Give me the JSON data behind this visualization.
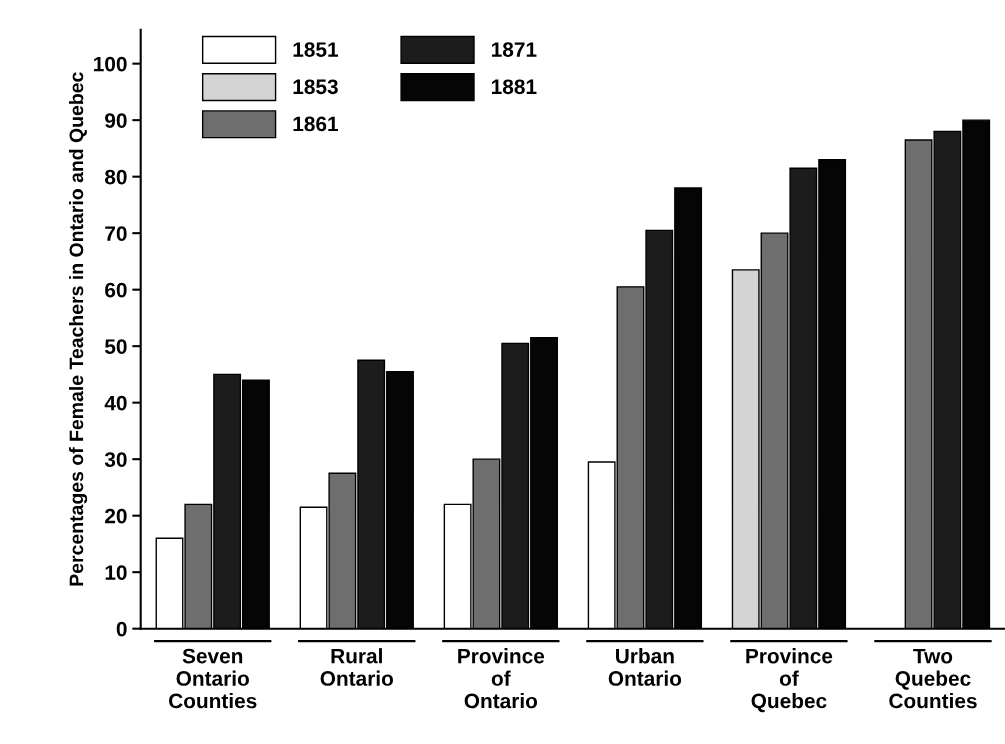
{
  "chart_data": {
    "type": "bar",
    "ylabel": "Percentages of Female Teachers in Ontario and Quebec",
    "categories": [
      "Seven\nOntario\nCounties",
      "Rural\nOntario",
      "Province\nof\nOntario",
      "Urban\nOntario",
      "Province\nof\nQuebec",
      "Two\nQuebec\nCounties"
    ],
    "series": [
      {
        "name": "1851",
        "color": "#ffffff",
        "values": [
          16,
          21.5,
          22,
          29.5,
          null,
          null
        ]
      },
      {
        "name": "1853",
        "color": "#d4d4d4",
        "values": [
          null,
          null,
          null,
          null,
          63.5,
          null
        ]
      },
      {
        "name": "1861",
        "color": "#6e6e6e",
        "values": [
          22,
          27.5,
          30,
          60.5,
          70,
          86.5
        ]
      },
      {
        "name": "1871",
        "color": "#1c1c1c",
        "values": [
          45,
          47.5,
          50.5,
          70.5,
          81.5,
          88
        ]
      },
      {
        "name": "1881",
        "color": "#050505",
        "values": [
          44,
          45.5,
          51.5,
          78,
          83,
          90
        ]
      }
    ],
    "ylim": [
      0,
      106
    ],
    "yticks": [
      0,
      10,
      20,
      30,
      40,
      50,
      60,
      70,
      80,
      90,
      100
    ],
    "grid": false,
    "legend": "top left"
  }
}
